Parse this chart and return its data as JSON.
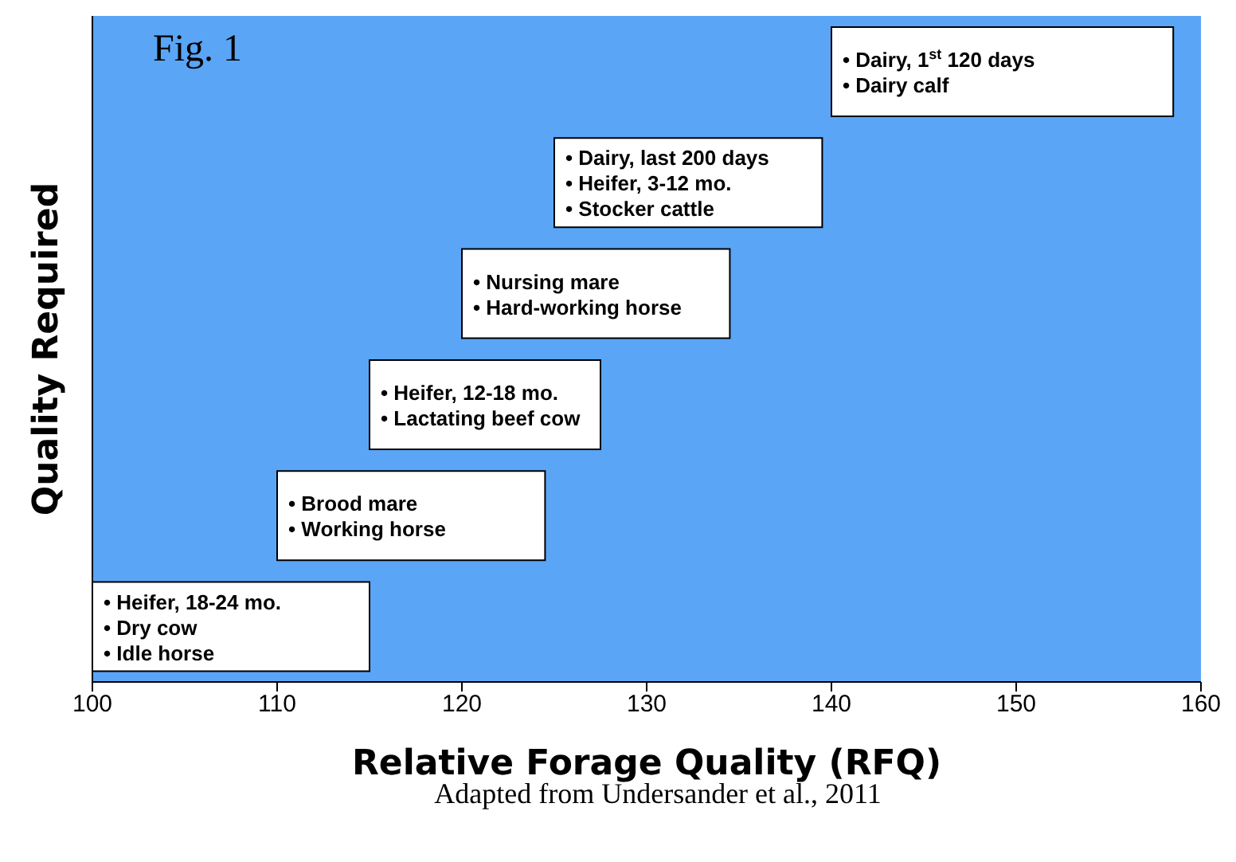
{
  "chart_data": {
    "type": "bar",
    "orientation": "horizontal",
    "title": "Fig. 1",
    "xlabel": "Relative Forage Quality (RFQ)",
    "ylabel": "Quality Required",
    "xlim": [
      100,
      160
    ],
    "xticks": [
      100,
      110,
      120,
      130,
      140,
      150,
      160
    ],
    "categories": [
      null,
      null,
      null,
      null,
      null,
      null
    ],
    "base": [
      140,
      125,
      120,
      115,
      110,
      100
    ],
    "values": [
      18.5,
      14.5,
      14.5,
      12.5,
      14.5,
      15
    ],
    "color": "#ffffff",
    "value_labels": [
      "• Dairy, 1$^{st}$ 120 days\n• Dairy calf",
      "• Dairy, last 200 days\n• Heifer, 3-12 mo.\n• Stocker cattle",
      "• Nursing mare\n• Hard-working horse",
      "• Heifer, 12-18 mo.\n• Lactating beef cow",
      "• Brood mare\n• Working horse",
      "• Heifer, 18-24 mo.\n• Dry cow\n• Idle horse"
    ],
    "annotations": [
      "Adapted from Undersander et al., 2011"
    ]
  }
}
